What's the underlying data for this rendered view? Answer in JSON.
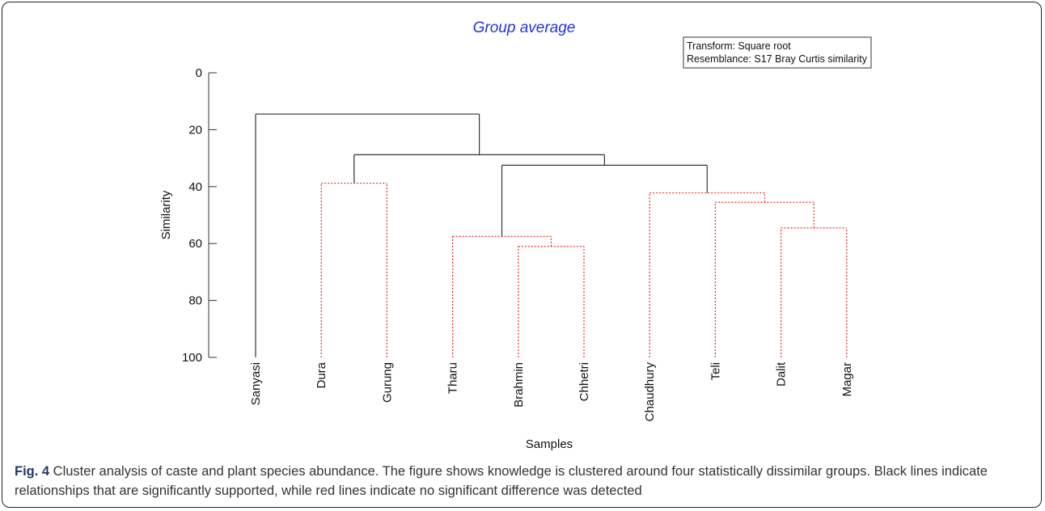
{
  "caption": {
    "label": "Fig. 4",
    "text": " Cluster analysis of caste and plant species abundance. The figure shows knowledge is clustered around four statistically dissimilar groups. Black lines indicate relationships that are significantly supported, while red lines indicate no significant difference was detected"
  },
  "chart_data": {
    "type": "dendrogram",
    "title": "Group average",
    "legend_box": [
      "Transform: Square root",
      "Resemblance: S17 Bray Curtis similarity"
    ],
    "xlabel": "Samples",
    "ylabel": "Similarity",
    "ylim": [
      0,
      100
    ],
    "y_inverted": true,
    "yticks": [
      0,
      20,
      40,
      60,
      80,
      100
    ],
    "leaves": [
      "Sanyasi",
      "Dura",
      "Gurung",
      "Tharu",
      "Brahmin",
      "Chhetri",
      "Chaudhury",
      "Teli",
      "Dalit",
      "Magar"
    ],
    "merges": [
      {
        "left": "Dalit",
        "right": "Magar",
        "similarity": 54.5,
        "significant": false
      },
      {
        "left": "Brahmin",
        "right": "Chhetri",
        "similarity": 61.0,
        "significant": false
      },
      {
        "left": "Teli",
        "right": "Dalit+Magar",
        "similarity": 45.5,
        "significant": false
      },
      {
        "left": "Chaudhury",
        "right": "Teli+Dalit+Magar",
        "similarity": 42.2,
        "significant": false
      },
      {
        "left": "Tharu",
        "right": "Brahmin+Chhetri",
        "similarity": 57.5,
        "significant": false
      },
      {
        "left": "Dura",
        "right": "Gurung",
        "similarity": 38.8,
        "significant": false
      },
      {
        "left": "Tharu+Brahmin+Chhetri",
        "right": "Chaudhury+Teli+Dalit+Magar",
        "similarity": 32.5,
        "significant": true
      },
      {
        "left": "Dura+Gurung",
        "right": "Tharu...Magar",
        "similarity": 28.8,
        "significant": true
      },
      {
        "left": "Sanyasi",
        "right": "Dura...Magar",
        "similarity": 14.5,
        "significant": true
      }
    ],
    "colors": {
      "significant": "#333333",
      "not_significant": "#e8302a",
      "title": "#2233dd"
    }
  }
}
